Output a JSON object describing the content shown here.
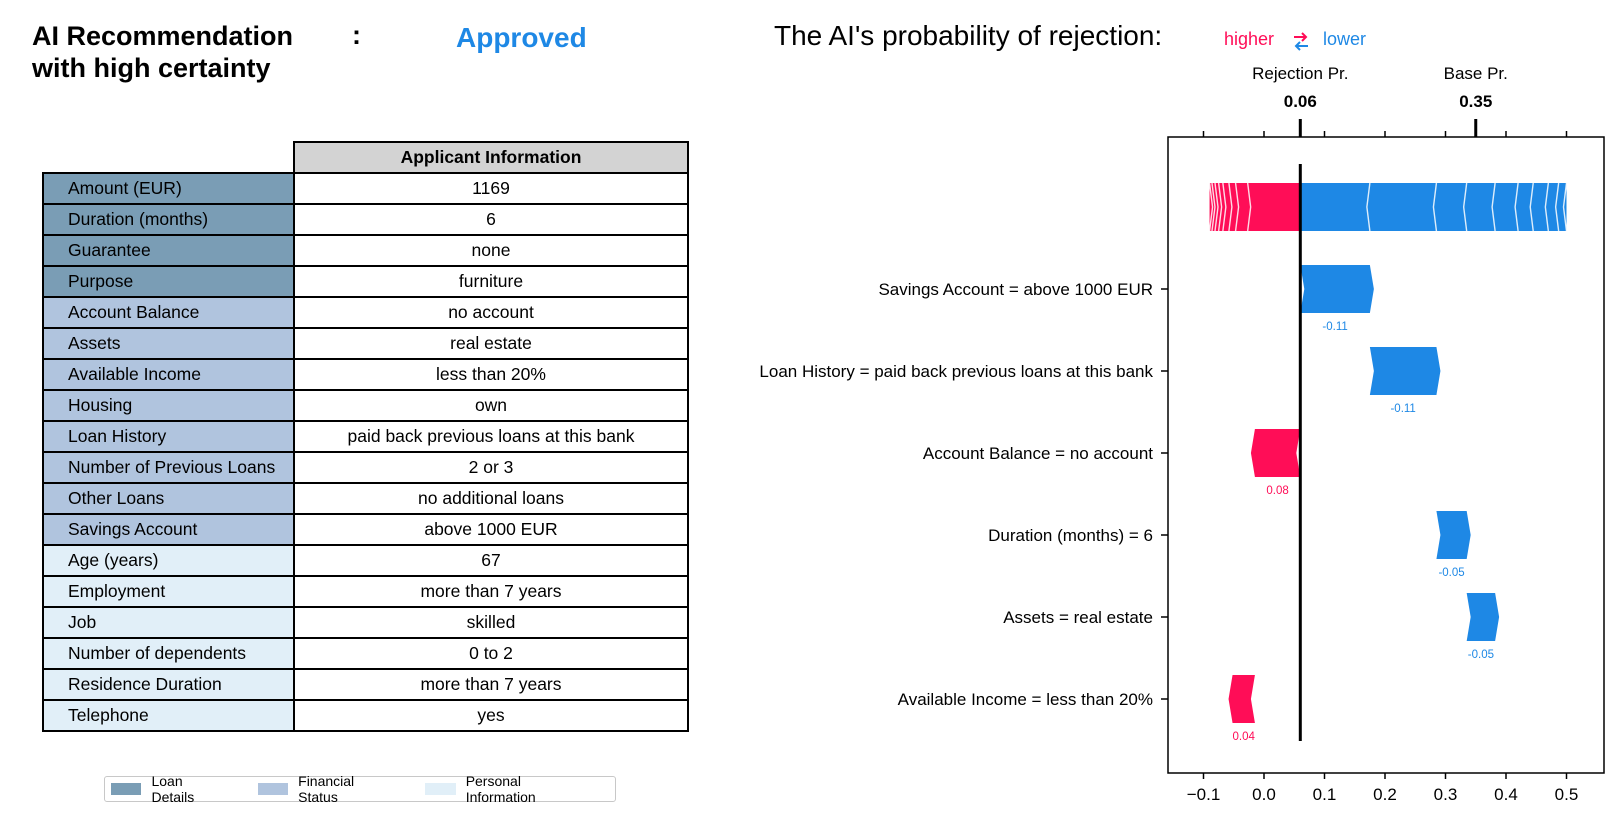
{
  "header": {
    "title_line1": "AI Recommendation",
    "title_line2": "with high certainty",
    "colon": ":",
    "status": "Approved",
    "prob_title": "The AI's probability of rejection:",
    "legend_higher": "higher",
    "legend_lower": "lower"
  },
  "colors": {
    "higher": "#ff0d57",
    "lower": "#1e88e5",
    "loan_details": "#7a9db5",
    "financial_status": "#b0c4de",
    "personal_information": "#e1eff8",
    "table_header": "#d3d3d3"
  },
  "table": {
    "header": "Applicant Information",
    "rows": [
      {
        "label": "Amount (EUR)",
        "value": "1169",
        "category": "loan"
      },
      {
        "label": "Duration (months)",
        "value": "6",
        "category": "loan"
      },
      {
        "label": "Guarantee",
        "value": "none",
        "category": "loan"
      },
      {
        "label": "Purpose",
        "value": "furniture",
        "category": "loan"
      },
      {
        "label": "Account Balance",
        "value": "no account",
        "category": "financial"
      },
      {
        "label": "Assets",
        "value": "real estate",
        "category": "financial"
      },
      {
        "label": "Available Income",
        "value": "less than 20%",
        "category": "financial"
      },
      {
        "label": "Housing",
        "value": "own",
        "category": "financial"
      },
      {
        "label": "Loan History",
        "value": "paid back previous loans at this bank",
        "category": "financial"
      },
      {
        "label": "Number of Previous Loans",
        "value": "2 or 3",
        "category": "financial"
      },
      {
        "label": "Other Loans",
        "value": "no additional loans",
        "category": "financial"
      },
      {
        "label": "Savings Account",
        "value": "above 1000 EUR",
        "category": "financial"
      },
      {
        "label": "Age (years)",
        "value": "67",
        "category": "personal"
      },
      {
        "label": "Employment",
        "value": "more than 7 years",
        "category": "personal"
      },
      {
        "label": "Job",
        "value": "skilled",
        "category": "personal"
      },
      {
        "label": "Number of dependents",
        "value": "0 to 2",
        "category": "personal"
      },
      {
        "label": "Residence Duration",
        "value": "more than 7 years",
        "category": "personal"
      },
      {
        "label": "Telephone",
        "value": "yes",
        "category": "personal"
      }
    ],
    "legend": {
      "loan": "Loan Details",
      "financial": "Financial Status",
      "personal": "Personal Information"
    }
  },
  "chart_data": {
    "type": "bar",
    "xlim": [
      -0.17,
      0.56
    ],
    "xticks": [
      -0.1,
      0.0,
      0.1,
      0.2,
      0.3,
      0.4,
      0.5
    ],
    "xtick_labels": [
      "−0.1",
      "0.0",
      "0.1",
      "0.2",
      "0.3",
      "0.4",
      "0.5"
    ],
    "rejection_pr": {
      "label": "Rejection Pr.",
      "value": 0.06,
      "value_label": "0.06"
    },
    "base_pr": {
      "label": "Base Pr.",
      "value": 0.35,
      "value_label": "0.35"
    },
    "summary_bar": {
      "higher_from": -0.09,
      "lower_to": 0.5,
      "higher_segments": [
        -0.09,
        -0.086,
        -0.081,
        -0.075,
        -0.068,
        -0.058,
        -0.047,
        -0.027,
        0.06
      ],
      "lower_segments": [
        0.06,
        0.175,
        0.285,
        0.335,
        0.382,
        0.42,
        0.445,
        0.47,
        0.487,
        0.5
      ]
    },
    "features": [
      {
        "label": "Savings Account = above 1000 EUR",
        "from": 0.06,
        "to": 0.175,
        "effect": -0.11,
        "effect_label": "-0.11",
        "direction": "lower"
      },
      {
        "label": "Loan History = paid back previous loans at this bank",
        "from": 0.175,
        "to": 0.285,
        "effect": -0.11,
        "effect_label": "-0.11",
        "direction": "lower"
      },
      {
        "label": "Account Balance = no account",
        "from": -0.015,
        "to": 0.06,
        "effect": 0.08,
        "effect_label": "0.08",
        "direction": "higher"
      },
      {
        "label": "Duration (months) = 6",
        "from": 0.285,
        "to": 0.335,
        "effect": -0.05,
        "effect_label": "-0.05",
        "direction": "lower"
      },
      {
        "label": "Assets = real estate",
        "from": 0.335,
        "to": 0.382,
        "effect": -0.05,
        "effect_label": "-0.05",
        "direction": "lower"
      },
      {
        "label": "Available Income = less than 20%",
        "from": -0.052,
        "to": -0.015,
        "effect": 0.04,
        "effect_label": "0.04",
        "direction": "higher"
      }
    ]
  }
}
